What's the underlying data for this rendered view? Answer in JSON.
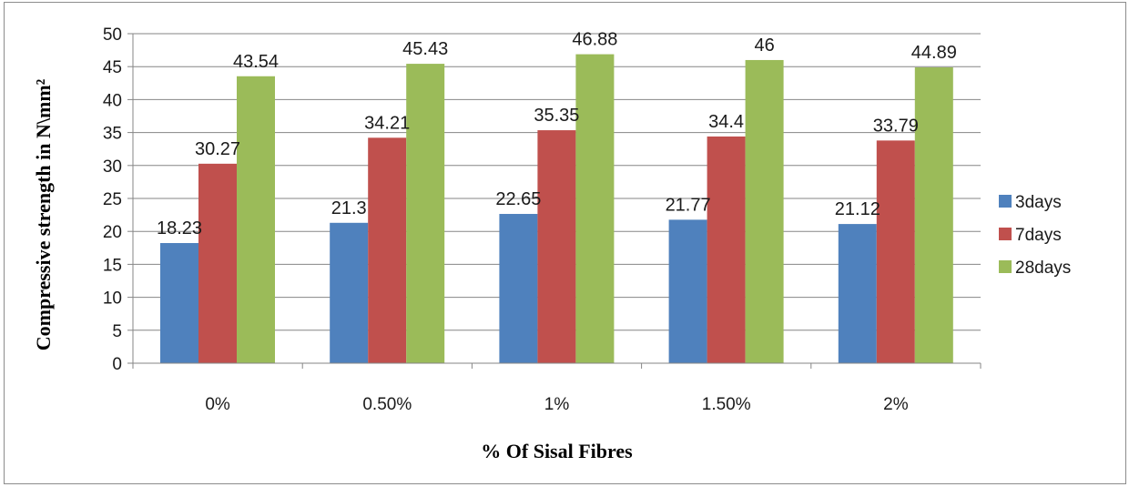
{
  "chart_data": {
    "type": "bar",
    "categories": [
      "0%",
      "0.50%",
      "1%",
      "1.50%",
      "2%"
    ],
    "series": [
      {
        "name": "3days",
        "values": [
          18.23,
          21.3,
          22.65,
          21.77,
          21.12
        ],
        "color": "#4f81bd"
      },
      {
        "name": "7days",
        "values": [
          30.27,
          34.21,
          35.35,
          34.4,
          33.79
        ],
        "color": "#c0504d"
      },
      {
        "name": "28days",
        "values": [
          43.54,
          45.43,
          46.88,
          46,
          44.89
        ],
        "color": "#9bbb59"
      }
    ],
    "data_labels": [
      [
        "18.23",
        "21.3",
        "22.65",
        "21.77",
        "21.12"
      ],
      [
        "30.27",
        "34.21",
        "35.35",
        "34.4",
        "33.79"
      ],
      [
        "43.54",
        "45.43",
        "46.88",
        "46",
        "44.89"
      ]
    ],
    "xlabel": "% Of Sisal Fibres",
    "ylabel": "Compressive strength in N\\mm²",
    "ylim": [
      0,
      50
    ],
    "yticks": [
      0,
      5,
      10,
      15,
      20,
      25,
      30,
      35,
      40,
      45,
      50
    ],
    "grid": true,
    "legend_position": "right",
    "gridline_color": "#868686"
  }
}
